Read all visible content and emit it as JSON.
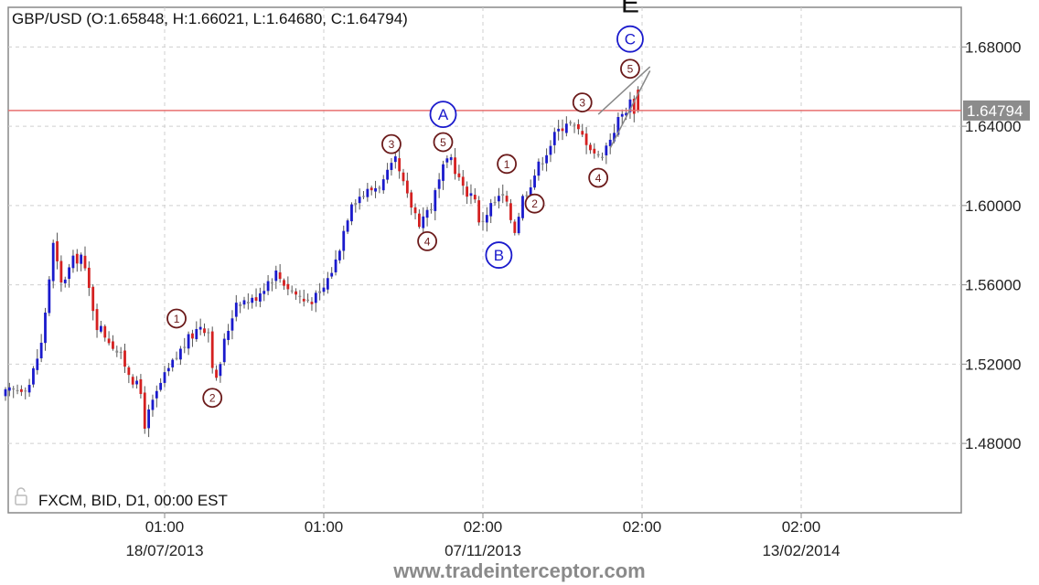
{
  "chart_data": {
    "type": "candlestick",
    "symbol": "GBP/USD",
    "ohlc_header": "GBP/USD (O:1.65848, H:1.66021, L:1.64680, C:1.64794)",
    "open": 1.65848,
    "high": 1.66021,
    "low": 1.6468,
    "close": 1.64794,
    "current_price_label": "1.64794",
    "current_price": 1.64794,
    "feed_info": "FXCM, BID, D1, 00:00 EST",
    "ylim": [
      1.445,
      1.7
    ],
    "y_ticks": [
      1.48,
      1.52,
      1.56,
      1.6,
      1.64,
      1.68
    ],
    "y_tick_labels": [
      "1.48000",
      "1.52000",
      "1.56000",
      "1.60000",
      "1.64000",
      "1.68000"
    ],
    "x_tick_labels": [
      {
        "time": "01:00",
        "date": "18/07/2013"
      },
      {
        "time": "01:00",
        "date": ""
      },
      {
        "time": "02:00",
        "date": "07/11/2013"
      },
      {
        "time": "02:00",
        "date": ""
      },
      {
        "time": "02:00",
        "date": "13/02/2014"
      }
    ],
    "x_tick_index": [
      40,
      80,
      120,
      160,
      200
    ],
    "n_slots": 240,
    "grid": true,
    "up_color": "#1a1acc",
    "down_color": "#d42020",
    "flat_color": "#888888",
    "price_line_color": "#e87070",
    "wave_color_small": "#6b1a1a",
    "wave_color_large": "#1a1acc",
    "close_path": [
      [
        0,
        1.505
      ],
      [
        6,
        1.51
      ],
      [
        9,
        1.53
      ],
      [
        12,
        1.58
      ],
      [
        14,
        1.56
      ],
      [
        17,
        1.572
      ],
      [
        19,
        1.575
      ],
      [
        23,
        1.54
      ],
      [
        27,
        1.53
      ],
      [
        30,
        1.52
      ],
      [
        34,
        1.505
      ],
      [
        35,
        1.49
      ],
      [
        39,
        1.51
      ],
      [
        44,
        1.527
      ],
      [
        49,
        1.54
      ],
      [
        51,
        1.537
      ],
      [
        52,
        1.521
      ],
      [
        53,
        1.511
      ],
      [
        55,
        1.531
      ],
      [
        58,
        1.552
      ],
      [
        62,
        1.552
      ],
      [
        66,
        1.562
      ],
      [
        68,
        1.566
      ],
      [
        71,
        1.559
      ],
      [
        75,
        1.552
      ],
      [
        79,
        1.554
      ],
      [
        83,
        1.572
      ],
      [
        87,
        1.603
      ],
      [
        91,
        1.607
      ],
      [
        95,
        1.612
      ],
      [
        98,
        1.622
      ],
      [
        101,
        1.604
      ],
      [
        104,
        1.592
      ],
      [
        107,
        1.6
      ],
      [
        110,
        1.618
      ],
      [
        112,
        1.624
      ],
      [
        115,
        1.608
      ],
      [
        118,
        1.605
      ],
      [
        119,
        1.59
      ],
      [
        122,
        1.6
      ],
      [
        125,
        1.605
      ],
      [
        128,
        1.588
      ],
      [
        130,
        1.604
      ],
      [
        134,
        1.62
      ],
      [
        138,
        1.635
      ],
      [
        141,
        1.643
      ],
      [
        143,
        1.639
      ],
      [
        146,
        1.633
      ],
      [
        149,
        1.624
      ],
      [
        151,
        1.63
      ],
      [
        154,
        1.643
      ],
      [
        157,
        1.652
      ],
      [
        159,
        1.646
      ]
    ],
    "waves": [
      {
        "label": "1",
        "i": 43,
        "price": 1.543,
        "size": "small"
      },
      {
        "label": "2",
        "i": 52,
        "price": 1.503,
        "size": "small"
      },
      {
        "label": "3",
        "i": 97,
        "price": 1.631,
        "size": "small"
      },
      {
        "label": "4",
        "i": 106,
        "price": 1.582,
        "size": "small"
      },
      {
        "label": "5",
        "i": 110,
        "price": 1.632,
        "size": "small"
      },
      {
        "label": "1",
        "i": 126,
        "price": 1.621,
        "size": "small"
      },
      {
        "label": "2",
        "i": 133,
        "price": 1.601,
        "size": "small"
      },
      {
        "label": "3",
        "i": 145,
        "price": 1.652,
        "size": "small"
      },
      {
        "label": "4",
        "i": 149,
        "price": 1.614,
        "size": "small"
      },
      {
        "label": "5",
        "i": 157,
        "price": 1.669,
        "size": "small"
      },
      {
        "label": "A",
        "i": 110,
        "price": 1.646,
        "size": "large"
      },
      {
        "label": "B",
        "i": 124,
        "price": 1.575,
        "size": "large"
      },
      {
        "label": "C",
        "i": 157,
        "price": 1.684,
        "size": "large"
      }
    ],
    "e_label": "E",
    "e_label_i": 157,
    "e_label_price": 1.702,
    "wedge_lines": [
      {
        "i1": 149,
        "p1": 1.646,
        "i2": 162,
        "p2": 1.67
      },
      {
        "i1": 152,
        "p1": 1.629,
        "i2": 162,
        "p2": 1.668
      }
    ]
  },
  "footer": {
    "watermark": "www.tradeinterceptor.com"
  }
}
